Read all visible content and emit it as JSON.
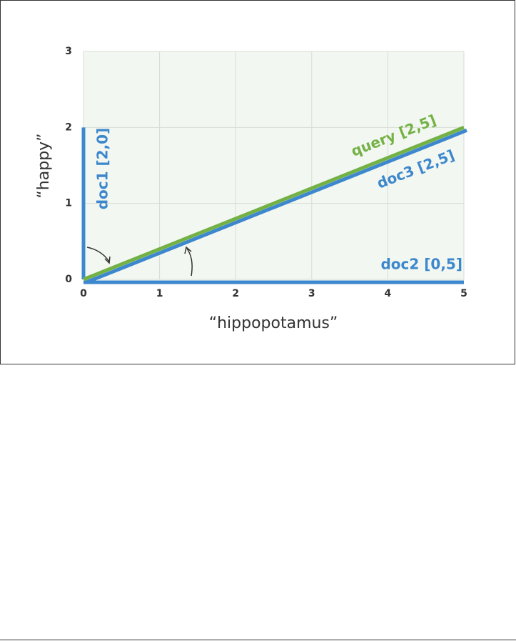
{
  "chart_data": {
    "type": "line",
    "x_label": "“hippopotamus”",
    "y_label": "“happy”",
    "xlim": [
      0,
      5
    ],
    "ylim": [
      0,
      3
    ],
    "xticks": [
      0,
      1,
      2,
      3,
      4,
      5
    ],
    "yticks": [
      0,
      1,
      2,
      3
    ],
    "grid": true,
    "series": [
      {
        "name": "doc1 [2,0]",
        "color": "#3c87cd",
        "x": [
          0,
          0
        ],
        "values": [
          0,
          2
        ]
      },
      {
        "name": "doc2 [0,5]",
        "color": "#3c87cd",
        "x": [
          0,
          5
        ],
        "values": [
          0,
          0
        ]
      },
      {
        "name": "doc3 [2,5]",
        "color": "#3c87cd",
        "x": [
          0,
          5
        ],
        "values": [
          0,
          2
        ]
      },
      {
        "name": "query [2,5]",
        "color": "#73b145",
        "x": [
          0,
          5
        ],
        "values": [
          0,
          2
        ]
      }
    ]
  }
}
